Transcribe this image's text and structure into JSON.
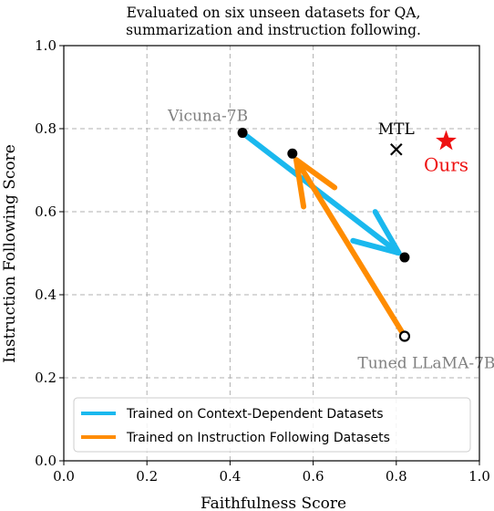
{
  "chart_data": {
    "type": "scatter",
    "title_lines": [
      "Evaluated on six unseen datasets for QA,",
      "summarization and instruction following."
    ],
    "xlabel": "Faithfulness Score",
    "ylabel": "Instruction Following Score",
    "xlim": [
      0.0,
      1.0
    ],
    "ylim": [
      0.0,
      1.0
    ],
    "xticks": [
      0.0,
      0.2,
      0.4,
      0.6,
      0.8,
      1.0
    ],
    "yticks": [
      0.0,
      0.2,
      0.4,
      0.6,
      0.8,
      1.0
    ],
    "xtick_labels": [
      "0.0",
      "0.2",
      "0.4",
      "0.6",
      "0.8",
      "1.0"
    ],
    "ytick_labels": [
      "0.0",
      "0.2",
      "0.4",
      "0.6",
      "0.8",
      "1.0"
    ],
    "grid": true,
    "legend_position": "lower-left",
    "points": [
      {
        "label": "Vicuna-7B",
        "x": 0.43,
        "y": 0.79
      },
      {
        "label": "",
        "x": 0.55,
        "y": 0.74
      },
      {
        "label": "",
        "x": 0.82,
        "y": 0.49
      },
      {
        "label": "Tuned LLaMA-7B",
        "x": 0.82,
        "y": 0.3
      },
      {
        "label": "MTL",
        "x": 0.8,
        "y": 0.75
      },
      {
        "label": "Ours",
        "x": 0.92,
        "y": 0.77
      }
    ],
    "series": [
      {
        "name": "Trained on Context-Dependent Datasets",
        "color": "#1ab8ee",
        "from": [
          0.43,
          0.79
        ],
        "to": [
          0.82,
          0.49
        ]
      },
      {
        "name": "Trained on Instruction Following Datasets",
        "color": "#ff8c00",
        "from": [
          0.82,
          0.3
        ],
        "to": [
          0.55,
          0.74
        ]
      }
    ],
    "colors": {
      "ours": "#ee1111",
      "point_label": "#808080",
      "grid": "#b0b0b0"
    }
  }
}
